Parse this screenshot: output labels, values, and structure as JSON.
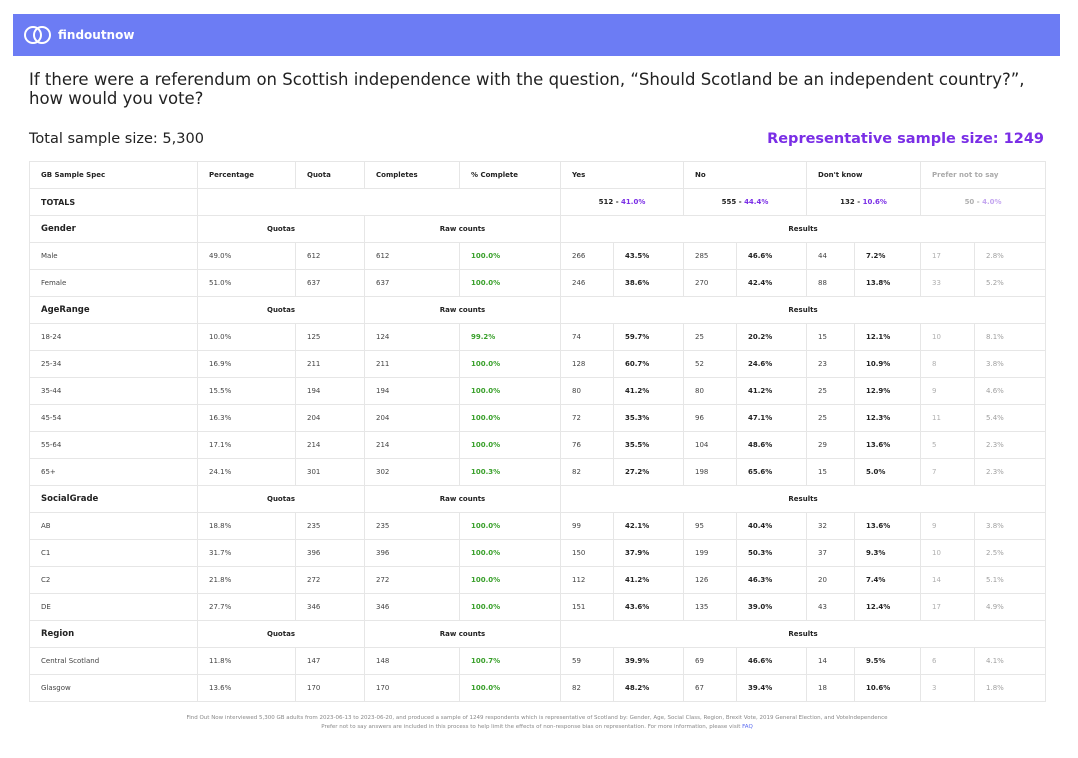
{
  "header": {
    "brand": "findoutnow",
    "bg_color": "#6c7cf4"
  },
  "question": "If there were a referendum on Scottish independence with the question, “Should Scotland be an independent country?”, how would you vote?",
  "total_sample": "Total sample size: 5,300",
  "representative_sample": "Representative sample size: 1249",
  "columns": [
    "GB Sample Spec",
    "Percentage",
    "Quota",
    "Completes",
    "% Complete",
    "Yes",
    "No",
    "Don't know",
    "Prefer not to say"
  ],
  "totals": {
    "label": "TOTALS",
    "yes": {
      "count": "512 - ",
      "pct": "41.0%"
    },
    "no": {
      "count": "555 - ",
      "pct": "44.4%"
    },
    "dk": {
      "count": "132 - ",
      "pct": "10.6%"
    },
    "pns": {
      "count": "50 - ",
      "pct": "4.0%"
    }
  },
  "subheaders": {
    "quotas": "Quotas",
    "raw": "Raw counts",
    "results": "Results"
  },
  "sections": [
    {
      "label": "Gender",
      "rows": [
        {
          "name": "Male",
          "pct": "49.0%",
          "quota": "612",
          "comp": "612",
          "pc": "100.0%",
          "yn": "266",
          "yp": "43.5%",
          "nn": "285",
          "np": "46.6%",
          "dn": "44",
          "dp": "7.2%",
          "pn": "17",
          "pp": "2.8%"
        },
        {
          "name": "Female",
          "pct": "51.0%",
          "quota": "637",
          "comp": "637",
          "pc": "100.0%",
          "yn": "246",
          "yp": "38.6%",
          "nn": "270",
          "np": "42.4%",
          "dn": "88",
          "dp": "13.8%",
          "pn": "33",
          "pp": "5.2%"
        }
      ]
    },
    {
      "label": "AgeRange",
      "rows": [
        {
          "name": "18-24",
          "pct": "10.0%",
          "quota": "125",
          "comp": "124",
          "pc": "99.2%",
          "yn": "74",
          "yp": "59.7%",
          "nn": "25",
          "np": "20.2%",
          "dn": "15",
          "dp": "12.1%",
          "pn": "10",
          "pp": "8.1%"
        },
        {
          "name": "25-34",
          "pct": "16.9%",
          "quota": "211",
          "comp": "211",
          "pc": "100.0%",
          "yn": "128",
          "yp": "60.7%",
          "nn": "52",
          "np": "24.6%",
          "dn": "23",
          "dp": "10.9%",
          "pn": "8",
          "pp": "3.8%"
        },
        {
          "name": "35-44",
          "pct": "15.5%",
          "quota": "194",
          "comp": "194",
          "pc": "100.0%",
          "yn": "80",
          "yp": "41.2%",
          "nn": "80",
          "np": "41.2%",
          "dn": "25",
          "dp": "12.9%",
          "pn": "9",
          "pp": "4.6%"
        },
        {
          "name": "45-54",
          "pct": "16.3%",
          "quota": "204",
          "comp": "204",
          "pc": "100.0%",
          "yn": "72",
          "yp": "35.3%",
          "nn": "96",
          "np": "47.1%",
          "dn": "25",
          "dp": "12.3%",
          "pn": "11",
          "pp": "5.4%"
        },
        {
          "name": "55-64",
          "pct": "17.1%",
          "quota": "214",
          "comp": "214",
          "pc": "100.0%",
          "yn": "76",
          "yp": "35.5%",
          "nn": "104",
          "np": "48.6%",
          "dn": "29",
          "dp": "13.6%",
          "pn": "5",
          "pp": "2.3%"
        },
        {
          "name": "65+",
          "pct": "24.1%",
          "quota": "301",
          "comp": "302",
          "pc": "100.3%",
          "yn": "82",
          "yp": "27.2%",
          "nn": "198",
          "np": "65.6%",
          "dn": "15",
          "dp": "5.0%",
          "pn": "7",
          "pp": "2.3%"
        }
      ]
    },
    {
      "label": "SocialGrade",
      "rows": [
        {
          "name": "AB",
          "pct": "18.8%",
          "quota": "235",
          "comp": "235",
          "pc": "100.0%",
          "yn": "99",
          "yp": "42.1%",
          "nn": "95",
          "np": "40.4%",
          "dn": "32",
          "dp": "13.6%",
          "pn": "9",
          "pp": "3.8%"
        },
        {
          "name": "C1",
          "pct": "31.7%",
          "quota": "396",
          "comp": "396",
          "pc": "100.0%",
          "yn": "150",
          "yp": "37.9%",
          "nn": "199",
          "np": "50.3%",
          "dn": "37",
          "dp": "9.3%",
          "pn": "10",
          "pp": "2.5%"
        },
        {
          "name": "C2",
          "pct": "21.8%",
          "quota": "272",
          "comp": "272",
          "pc": "100.0%",
          "yn": "112",
          "yp": "41.2%",
          "nn": "126",
          "np": "46.3%",
          "dn": "20",
          "dp": "7.4%",
          "pn": "14",
          "pp": "5.1%"
        },
        {
          "name": "DE",
          "pct": "27.7%",
          "quota": "346",
          "comp": "346",
          "pc": "100.0%",
          "yn": "151",
          "yp": "43.6%",
          "nn": "135",
          "np": "39.0%",
          "dn": "43",
          "dp": "12.4%",
          "pn": "17",
          "pp": "4.9%"
        }
      ]
    },
    {
      "label": "Region",
      "rows": [
        {
          "name": "Central Scotland",
          "pct": "11.8%",
          "quota": "147",
          "comp": "148",
          "pc": "100.7%",
          "yn": "59",
          "yp": "39.9%",
          "nn": "69",
          "np": "46.6%",
          "dn": "14",
          "dp": "9.5%",
          "pn": "6",
          "pp": "4.1%"
        },
        {
          "name": "Glasgow",
          "pct": "13.6%",
          "quota": "170",
          "comp": "170",
          "pc": "100.0%",
          "yn": "82",
          "yp": "48.2%",
          "nn": "67",
          "np": "39.4%",
          "dn": "18",
          "dp": "10.6%",
          "pn": "3",
          "pp": "1.8%"
        }
      ]
    }
  ],
  "footer": {
    "line1": "Find Out Now interviewed 5,300 GB adults from 2023-06-13 to 2023-06-20, and produced a sample of 1249 respondents which is representative of Scotland by: Gender, Age, Social Class, Region, Brexit Vote, 2019 General Election, and VoteIndependence",
    "line2": "Prefer not to say answers are included in this process to help limit the effects of non-response bias on representation. For more information, please visit ",
    "faq": "FAQ"
  }
}
